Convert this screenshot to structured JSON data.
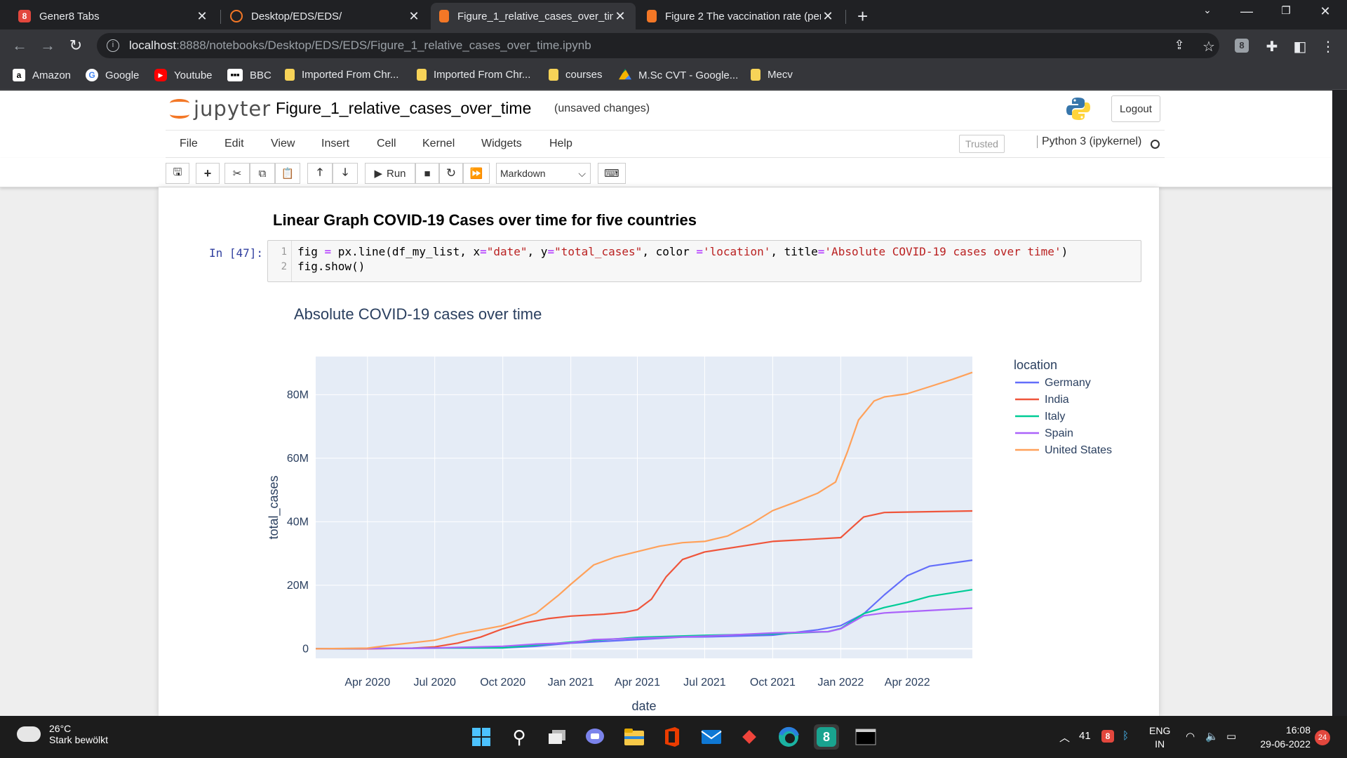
{
  "browser": {
    "tabs": [
      {
        "title": "Gener8 Tabs",
        "active": false
      },
      {
        "title": "Desktop/EDS/EDS/",
        "active": false
      },
      {
        "title": "Figure_1_relative_cases_over_time",
        "active": true
      },
      {
        "title": "Figure 2 The vaccination rate (per",
        "active": false
      }
    ],
    "url_host": "localhost",
    "url_path": ":8888/notebooks/Desktop/EDS/EDS/Figure_1_relative_cases_over_time.ipynb",
    "bookmarks": [
      "Amazon",
      "Google",
      "Youtube",
      "BBC",
      "Imported From Chr...",
      "Imported From Chr...",
      "courses",
      "M.Sc CVT - Google...",
      "Mecv"
    ],
    "extension_badge": "8"
  },
  "jupyter": {
    "logo_text": "jupyter",
    "notebook_name": "Figure_1_relative_cases_over_time",
    "save_status": "(unsaved changes)",
    "logout_label": "Logout",
    "menu": [
      "File",
      "Edit",
      "View",
      "Insert",
      "Cell",
      "Kernel",
      "Widgets",
      "Help"
    ],
    "trusted_label": "Trusted",
    "kernel_label": "Python 3 (ipykernel)",
    "run_label": "Run",
    "cell_type": "Markdown"
  },
  "notebook": {
    "heading": "Linear Graph COVID-19 Cases over time for five countries",
    "prompt": "In [47]:",
    "line_numbers": [
      "1",
      "2"
    ],
    "code_line2": "fig.show()"
  },
  "chart_data": {
    "type": "line",
    "title": "Absolute COVID-19 cases over time",
    "xlabel": "date",
    "ylabel": "total_cases",
    "legend_title": "location",
    "legend_position": "right",
    "x_tick_labels": [
      "Apr 2020",
      "Jul 2020",
      "Oct 2020",
      "Jan 2021",
      "Apr 2021",
      "Jul 2021",
      "Oct 2021",
      "Jan 2022",
      "Apr 2022"
    ],
    "y_tick_labels": [
      "0",
      "20M",
      "40M",
      "60M",
      "80M"
    ],
    "x_range": [
      "2020-01-22",
      "2022-06-28"
    ],
    "y_range": [
      -3000000,
      92000000
    ],
    "x_ticks": [
      "2020-04-01",
      "2020-07-01",
      "2020-10-01",
      "2021-01-01",
      "2021-04-01",
      "2021-07-01",
      "2021-10-01",
      "2022-01-01",
      "2022-04-01"
    ],
    "y_ticks": [
      0,
      20000000,
      40000000,
      60000000,
      80000000
    ],
    "series": [
      {
        "name": "Germany",
        "color": "#636efa",
        "points": [
          [
            "2020-01-22",
            0
          ],
          [
            "2020-04-01",
            70000
          ],
          [
            "2020-07-01",
            195000
          ],
          [
            "2020-10-01",
            300000
          ],
          [
            "2020-11-15",
            800000
          ],
          [
            "2021-01-01",
            1800000
          ],
          [
            "2021-04-01",
            2900000
          ],
          [
            "2021-06-01",
            3700000
          ],
          [
            "2021-07-01",
            3750000
          ],
          [
            "2021-10-01",
            4300000
          ],
          [
            "2021-12-01",
            6000000
          ],
          [
            "2022-01-01",
            7300000
          ],
          [
            "2022-02-01",
            11000000
          ],
          [
            "2022-03-01",
            17000000
          ],
          [
            "2022-04-01",
            23000000
          ],
          [
            "2022-05-01",
            26000000
          ],
          [
            "2022-06-28",
            27900000
          ]
        ]
      },
      {
        "name": "India",
        "color": "#ef553b",
        "points": [
          [
            "2020-01-22",
            0
          ],
          [
            "2020-04-01",
            2000
          ],
          [
            "2020-06-01",
            200000
          ],
          [
            "2020-07-01",
            600000
          ],
          [
            "2020-08-01",
            1800000
          ],
          [
            "2020-09-01",
            3700000
          ],
          [
            "2020-10-01",
            6300000
          ],
          [
            "2020-11-01",
            8200000
          ],
          [
            "2020-12-01",
            9500000
          ],
          [
            "2021-01-01",
            10300000
          ],
          [
            "2021-02-15",
            10900000
          ],
          [
            "2021-03-15",
            11500000
          ],
          [
            "2021-04-01",
            12300000
          ],
          [
            "2021-04-20",
            15600000
          ],
          [
            "2021-05-10",
            22700000
          ],
          [
            "2021-06-01",
            28100000
          ],
          [
            "2021-07-01",
            30500000
          ],
          [
            "2021-10-01",
            33800000
          ],
          [
            "2022-01-01",
            35000000
          ],
          [
            "2022-01-20",
            39000000
          ],
          [
            "2022-02-01",
            41500000
          ],
          [
            "2022-03-01",
            42900000
          ],
          [
            "2022-06-28",
            43400000
          ]
        ]
      },
      {
        "name": "Italy",
        "color": "#00cc96",
        "points": [
          [
            "2020-01-22",
            0
          ],
          [
            "2020-04-01",
            110000
          ],
          [
            "2020-07-01",
            240000
          ],
          [
            "2020-10-01",
            320000
          ],
          [
            "2020-11-15",
            1200000
          ],
          [
            "2021-01-01",
            2100000
          ],
          [
            "2021-04-01",
            3600000
          ],
          [
            "2021-07-01",
            4250000
          ],
          [
            "2021-10-01",
            4680000
          ],
          [
            "2021-12-15",
            5400000
          ],
          [
            "2022-01-01",
            6400000
          ],
          [
            "2022-02-01",
            11100000
          ],
          [
            "2022-03-01",
            13000000
          ],
          [
            "2022-04-01",
            14600000
          ],
          [
            "2022-05-01",
            16500000
          ],
          [
            "2022-06-28",
            18600000
          ]
        ]
      },
      {
        "name": "Spain",
        "color": "#ab63fa",
        "points": [
          [
            "2020-01-22",
            0
          ],
          [
            "2020-04-01",
            100000
          ],
          [
            "2020-07-01",
            250000
          ],
          [
            "2020-10-01",
            800000
          ],
          [
            "2020-11-15",
            1500000
          ],
          [
            "2021-01-01",
            1900000
          ],
          [
            "2021-02-01",
            2900000
          ],
          [
            "2021-04-01",
            3300000
          ],
          [
            "2021-07-01",
            3950000
          ],
          [
            "2021-10-01",
            4970000
          ],
          [
            "2021-12-15",
            5400000
          ],
          [
            "2022-01-01",
            6300000
          ],
          [
            "2022-02-01",
            10400000
          ],
          [
            "2022-03-01",
            11300000
          ],
          [
            "2022-04-01",
            11700000
          ],
          [
            "2022-06-28",
            12800000
          ]
        ]
      },
      {
        "name": "United States",
        "color": "#ffa15a",
        "points": [
          [
            "2020-01-22",
            0
          ],
          [
            "2020-04-01",
            200000
          ],
          [
            "2020-05-01",
            1100000
          ],
          [
            "2020-07-01",
            2700000
          ],
          [
            "2020-08-01",
            4600000
          ],
          [
            "2020-10-01",
            7300000
          ],
          [
            "2020-11-15",
            11200000
          ],
          [
            "2020-12-15",
            16800000
          ],
          [
            "2021-01-01",
            20300000
          ],
          [
            "2021-02-01",
            26400000
          ],
          [
            "2021-03-01",
            28800000
          ],
          [
            "2021-04-01",
            30600000
          ],
          [
            "2021-05-01",
            32300000
          ],
          [
            "2021-06-01",
            33400000
          ],
          [
            "2021-07-01",
            33800000
          ],
          [
            "2021-08-01",
            35500000
          ],
          [
            "2021-09-01",
            39200000
          ],
          [
            "2021-10-01",
            43500000
          ],
          [
            "2021-11-01",
            46200000
          ],
          [
            "2021-12-01",
            49000000
          ],
          [
            "2021-12-25",
            52500000
          ],
          [
            "2022-01-10",
            62000000
          ],
          [
            "2022-01-25",
            72000000
          ],
          [
            "2022-02-15",
            78000000
          ],
          [
            "2022-03-01",
            79300000
          ],
          [
            "2022-04-01",
            80300000
          ],
          [
            "2022-05-01",
            82500000
          ],
          [
            "2022-06-01",
            84800000
          ],
          [
            "2022-06-28",
            87000000
          ]
        ]
      }
    ]
  },
  "taskbar": {
    "temperature": "26°C",
    "weather": "Stark bewölkt",
    "tray_count": "41",
    "lang_top": "ENG",
    "lang_bottom": "IN",
    "time": "16:08",
    "date": "29-06-2022",
    "notifications": "24"
  }
}
